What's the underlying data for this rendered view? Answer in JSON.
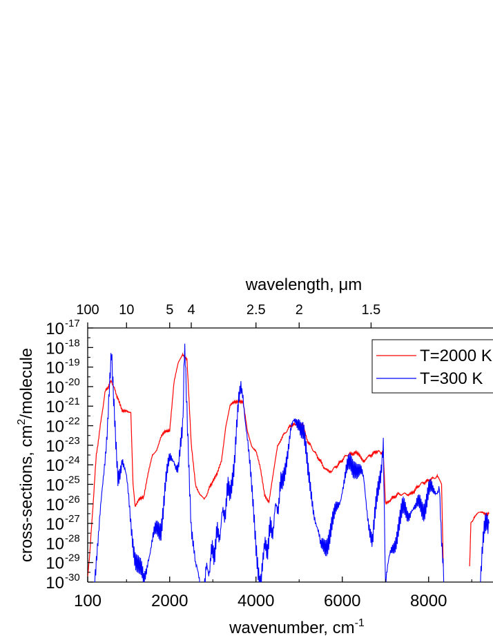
{
  "chart_data": {
    "type": "line",
    "x_axis": {
      "label": "wavenumber, cm",
      "label_superscript": "-1",
      "range": [
        100,
        9400
      ],
      "ticks": [
        100,
        2000,
        4000,
        6000,
        8000
      ],
      "tick_labels": [
        "100",
        "2000",
        "4000",
        "6000",
        "8000"
      ]
    },
    "top_axis": {
      "label": "wavelength, μm",
      "ticks_um": [
        100,
        10,
        5,
        4,
        2.5,
        2,
        1.5
      ],
      "tick_labels": [
        "100",
        "10",
        "5",
        "4",
        "2.5",
        "2",
        "1.5"
      ]
    },
    "y_axis": {
      "label_parts": [
        "cross-sections, cm",
        "2",
        "/molecule"
      ],
      "scale": "log",
      "range": [
        1e-30,
        1e-17
      ],
      "tick_exponents": [
        "-30",
        "-29",
        "-28",
        "-27",
        "-26",
        "-25",
        "-24",
        "-23",
        "-22",
        "-21",
        "-20",
        "-19",
        "-18",
        "-17"
      ],
      "tick_base": "10"
    },
    "legend": {
      "placement": "top-right"
    },
    "series": [
      {
        "name": "T=2000 K",
        "color": "#ff0000",
        "x": [
          100,
          150,
          300,
          500,
          650,
          800,
          900,
          1000,
          1100,
          1150,
          1200,
          1300,
          1400,
          1500,
          1600,
          1700,
          1800,
          1900,
          2000,
          2100,
          2200,
          2300,
          2400,
          2500,
          2600,
          2700,
          2800,
          3000,
          3100,
          3200,
          3300,
          3400,
          3500,
          3600,
          3700,
          3800,
          3900,
          4000,
          4100,
          4200,
          4300,
          4400,
          4500,
          4600,
          4800,
          4950,
          5100,
          5200,
          5400,
          5600,
          5700,
          5900,
          6100,
          6300,
          6400,
          6500,
          6600,
          6800,
          6950,
          7000,
          7100,
          7300,
          7600,
          7800,
          8000,
          8200,
          8300,
          8340
        ],
        "y": [
          -29.7,
          -28.5,
          -23.5,
          -20.3,
          -19.7,
          -20.6,
          -21.3,
          -21.2,
          -21.3,
          -25.0,
          -26.2,
          -25.7,
          -25.6,
          -24.5,
          -23.5,
          -23.2,
          -22.6,
          -22.3,
          -22.2,
          -19.8,
          -18.8,
          -18.3,
          -18.6,
          -23.0,
          -25.0,
          -25.5,
          -25.8,
          -24.8,
          -24.5,
          -23.8,
          -22.0,
          -21.0,
          -20.8,
          -20.7,
          -20.8,
          -22.3,
          -23.0,
          -23.3,
          -24.2,
          -25.5,
          -25.9,
          -24.5,
          -23.0,
          -22.6,
          -22.0,
          -21.9,
          -22.0,
          -22.8,
          -23.5,
          -24.2,
          -24.4,
          -24.0,
          -23.5,
          -23.4,
          -23.5,
          -23.8,
          -23.6,
          -23.3,
          -23.4,
          -26.0,
          -25.8,
          -25.5,
          -25.5,
          -25.0,
          -24.8,
          -24.6,
          -25.0,
          -29.2
        ]
      },
      {
        "name": "T=300 K",
        "color": "#0000ff",
        "x": [
          250,
          350,
          450,
          550,
          600,
          650,
          700,
          750,
          800,
          900,
          1000,
          1100,
          1200,
          1300,
          1400,
          1500,
          1600,
          1700,
          1800,
          1900,
          2000,
          2100,
          2200,
          2300,
          2330,
          2360,
          2400,
          2500,
          2600,
          2700,
          2800,
          3000,
          3200,
          3400,
          3500,
          3600,
          3650,
          3700,
          3800,
          3900,
          4000,
          4100,
          4200,
          4400,
          4600,
          4700,
          4800,
          4900,
          5000,
          5100,
          5200,
          5300,
          5400,
          5500,
          5600,
          5700,
          5800,
          5900,
          6000,
          6100,
          6200,
          6300,
          6400,
          6500,
          6600,
          6700,
          6800,
          6900,
          6950,
          7000,
          7100,
          7200,
          7300,
          7400,
          7500,
          7600,
          7700,
          7800,
          7900,
          8000,
          8100,
          8200,
          8250,
          8300,
          8350
        ],
        "y": [
          -30.0,
          -28.0,
          -25.0,
          -22.0,
          -20.0,
          -18.5,
          -21.0,
          -23.0,
          -24.5,
          -23.5,
          -25.0,
          -27.0,
          -28.5,
          -29.5,
          -30.0,
          -28.5,
          -28.0,
          -27.5,
          -27.0,
          -25.0,
          -24.0,
          -23.5,
          -24.0,
          -22.5,
          -19.0,
          -18.2,
          -21.0,
          -27.0,
          -29.5,
          -30.0,
          -30.0,
          -28.5,
          -27.0,
          -25.0,
          -24.0,
          -21.0,
          -20.0,
          -20.2,
          -22.5,
          -25.5,
          -28.0,
          -30.0,
          -28.5,
          -27.0,
          -25.0,
          -23.5,
          -22.5,
          -22.0,
          -21.5,
          -22.3,
          -24.5,
          -25.5,
          -27.0,
          -28.5,
          -28.0,
          -27.5,
          -27.0,
          -26.0,
          -25.0,
          -24.5,
          -24.0,
          -23.8,
          -24.5,
          -25.0,
          -26.5,
          -28.0,
          -26.0,
          -24.0,
          -22.5,
          -30.0,
          -29.0,
          -28.0,
          -27.0,
          -26.5,
          -26.5,
          -26.0,
          -26.5,
          -26.0,
          -26.0,
          -25.5,
          -25.5,
          -25.0,
          -24.8,
          -28.0,
          -30.0
        ]
      },
      {
        "name": "",
        "color": "#ff0000",
        "x": [
          8950,
          8980,
          9050,
          9150,
          9250,
          9350,
          9400
        ],
        "y": [
          -29.2,
          -27.0,
          -26.7,
          -26.5,
          -26.4,
          -26.5,
          -26.5
        ]
      },
      {
        "name": "",
        "color": "#0000ff",
        "x": [
          9200,
          9250,
          9300,
          9350,
          9400
        ],
        "y": [
          -30.0,
          -28.5,
          -27.5,
          -27.0,
          -27.0
        ]
      }
    ]
  }
}
